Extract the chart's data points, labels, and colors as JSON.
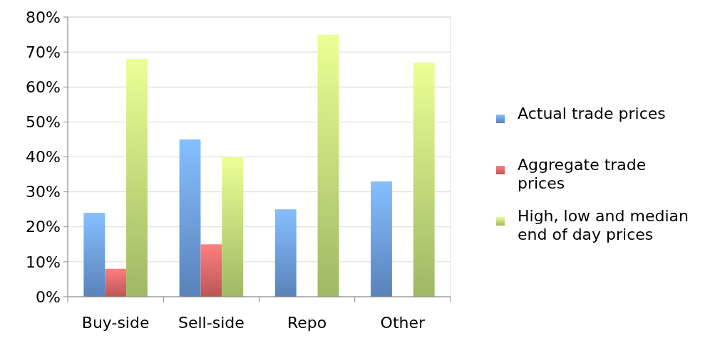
{
  "chart_data": {
    "type": "bar",
    "categories": [
      "Buy-side",
      "Sell-side",
      "Repo",
      "Other"
    ],
    "series": [
      {
        "name": "Actual trade prices",
        "color": "#6fa0e6",
        "values": [
          24,
          45,
          25,
          33
        ]
      },
      {
        "name": "Aggregate trade prices",
        "color": "#e86a6a",
        "values": [
          8,
          15,
          null,
          null
        ]
      },
      {
        "name": "High, low and median end of day prices",
        "color": "#c4e47c",
        "values": [
          68,
          40,
          75,
          67
        ]
      }
    ],
    "ylim": [
      0,
      80
    ],
    "yticks": [
      {
        "value": 0,
        "label": "0%"
      },
      {
        "value": 10,
        "label": "10%"
      },
      {
        "value": 20,
        "label": "20%"
      },
      {
        "value": 30,
        "label": "30%"
      },
      {
        "value": 40,
        "label": "40%"
      },
      {
        "value": 50,
        "label": "50%"
      },
      {
        "value": 60,
        "label": "60%"
      },
      {
        "value": 70,
        "label": "70%"
      },
      {
        "value": 80,
        "label": "80%"
      }
    ],
    "grid": true,
    "legend": "right"
  }
}
